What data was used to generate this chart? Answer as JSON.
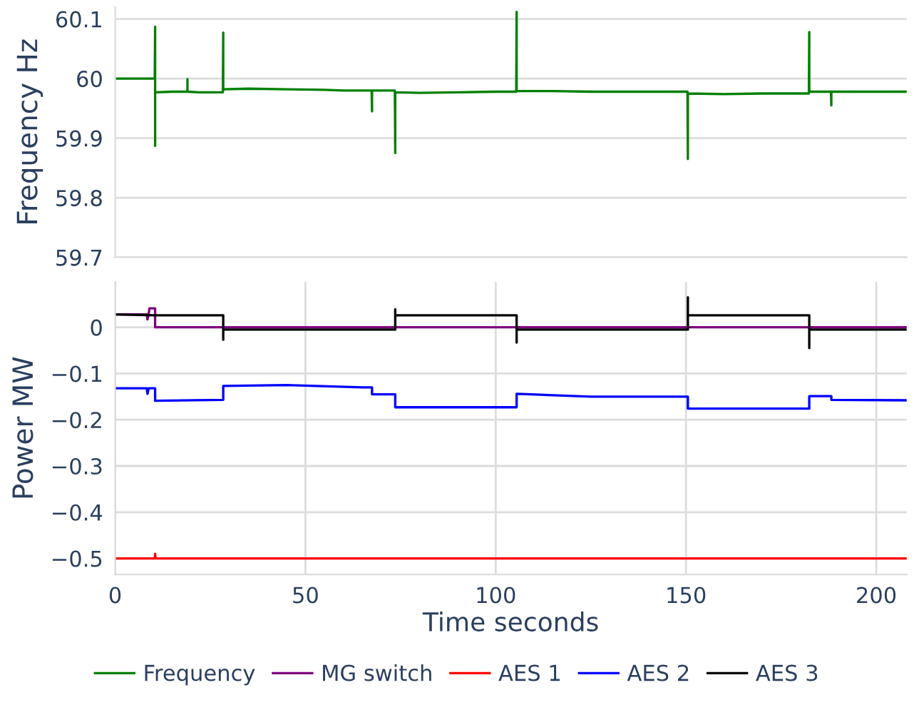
{
  "chart_data": [
    {
      "type": "line",
      "ylabel": "Frequency Hz",
      "xlim": [
        0,
        208
      ],
      "xticks": [
        0,
        50,
        100,
        150,
        200
      ],
      "ylim": [
        59.7,
        60.12
      ],
      "yticks": [
        59.7,
        59.8,
        59.9,
        60,
        60.1
      ],
      "grid": "y",
      "tick_labels": "y",
      "legend": "bottom",
      "series": [
        {
          "name": "Frequency",
          "color": "#008000",
          "x": [
            0,
            10.4,
            10.5,
            10.5,
            10.5,
            10.6,
            15,
            19,
            19,
            19,
            22,
            28.3,
            28.4,
            28.4,
            28.5,
            35,
            45,
            55,
            60,
            67.4,
            67.5,
            67.5,
            67.6,
            73.5,
            73.6,
            73.6,
            73.7,
            80,
            90,
            100,
            105.4,
            105.5,
            105.5,
            105.6,
            115,
            125,
            135,
            145,
            150.4,
            150.5,
            150.5,
            150.6,
            160,
            170,
            182.3,
            182.4,
            182.4,
            182.5,
            188.1,
            188.2,
            188.2,
            188.3,
            195,
            208
          ],
          "values": [
            60,
            60,
            60.087,
            59.887,
            59.977,
            59.977,
            59.978,
            59.978,
            59.999,
            59.978,
            59.977,
            59.977,
            60.077,
            59.98,
            59.982,
            59.983,
            59.982,
            59.981,
            59.98,
            59.98,
            59.945,
            59.98,
            59.98,
            59.98,
            59.875,
            59.977,
            59.977,
            59.976,
            59.977,
            59.978,
            59.978,
            60.112,
            59.979,
            59.979,
            59.979,
            59.978,
            59.978,
            59.978,
            59.978,
            59.865,
            59.975,
            59.975,
            59.974,
            59.975,
            59.975,
            60.078,
            59.978,
            59.978,
            59.978,
            59.955,
            59.978,
            59.978,
            59.978,
            59.978
          ]
        }
      ]
    },
    {
      "type": "line",
      "xlabel": "Time seconds",
      "ylabel": "Power MW",
      "xlim": [
        0,
        208
      ],
      "xticks": [
        0,
        50,
        100,
        150,
        200
      ],
      "ylim": [
        -0.535,
        0.098
      ],
      "yticks": [
        -0.5,
        -0.4,
        -0.3,
        -0.2,
        -0.1,
        0
      ],
      "grid": true,
      "legend": "bottom",
      "series": [
        {
          "name": "MG switch",
          "color": "#800080",
          "x": [
            0,
            8.3,
            8.5,
            8.8,
            9,
            10.5,
            10.5,
            208
          ],
          "values": [
            0.028,
            0.028,
            0.017,
            0.028,
            0.041,
            0.041,
            0,
            0
          ]
        },
        {
          "name": "AES 1",
          "color": "#ff0000",
          "x": [
            0,
            10.4,
            10.5,
            10.6,
            208
          ],
          "values": [
            -0.5,
            -0.5,
            -0.49,
            -0.5,
            -0.5
          ]
        },
        {
          "name": "AES 2",
          "color": "#0000ff",
          "x": [
            0,
            8.3,
            8.5,
            8.8,
            10.5,
            10.5,
            28.4,
            28.4,
            45,
            65,
            67.5,
            67.5,
            73.6,
            73.6,
            105.5,
            105.5,
            125,
            150.5,
            150.5,
            182.4,
            182.4,
            188.2,
            188.2,
            208
          ],
          "values": [
            -0.132,
            -0.132,
            -0.144,
            -0.132,
            -0.132,
            -0.159,
            -0.157,
            -0.127,
            -0.125,
            -0.13,
            -0.13,
            -0.145,
            -0.145,
            -0.173,
            -0.173,
            -0.144,
            -0.15,
            -0.15,
            -0.176,
            -0.176,
            -0.149,
            -0.149,
            -0.157,
            -0.158
          ]
        },
        {
          "name": "AES 3",
          "color": "#000000",
          "x": [
            0,
            10.5,
            28.4,
            28.4,
            28.4,
            73.6,
            73.6,
            73.6,
            105.5,
            105.5,
            105.5,
            150.5,
            150.5,
            150.5,
            182.4,
            182.4,
            182.4,
            208
          ],
          "values": [
            0.028,
            0.026,
            0.026,
            -0.027,
            -0.005,
            -0.005,
            0.039,
            0.026,
            0.026,
            -0.033,
            -0.005,
            -0.005,
            0.065,
            0.026,
            0.026,
            -0.045,
            -0.005,
            -0.005
          ]
        }
      ]
    }
  ]
}
